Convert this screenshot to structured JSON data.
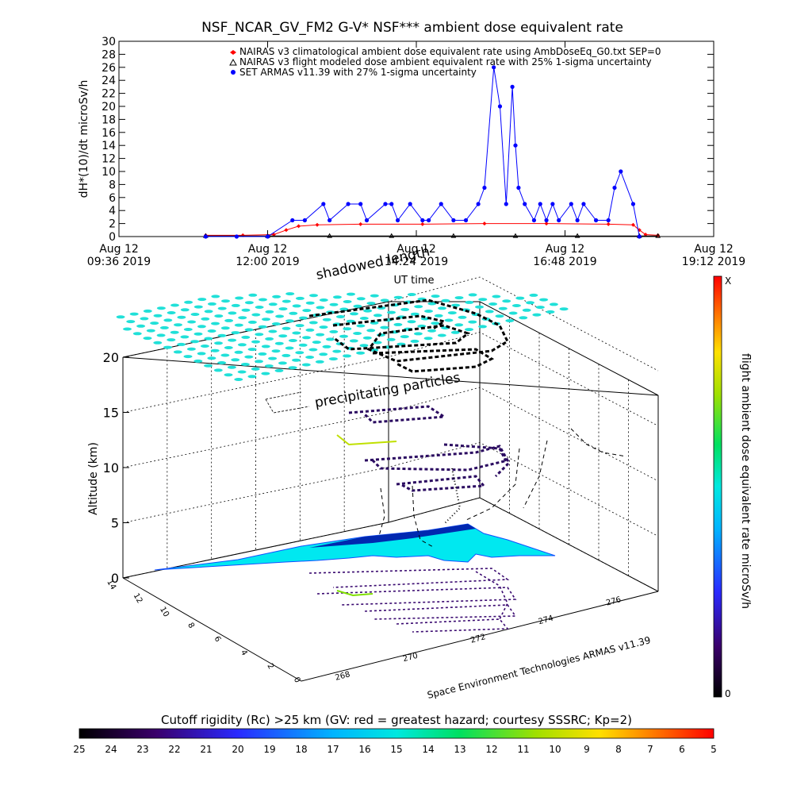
{
  "chart_data": [
    {
      "type": "line",
      "title": "NSF_NCAR_GV_FM2 G-V* NSF*** ambient dose equivalent rate",
      "ylabel": "dH*(10)/dt microSv/h",
      "xlabel": "UT time",
      "ylim": [
        0,
        30
      ],
      "yticks": [
        0,
        2,
        4,
        6,
        8,
        10,
        12,
        14,
        16,
        18,
        20,
        22,
        24,
        26,
        28,
        30
      ],
      "xlim_hours": [
        9.6,
        19.2
      ],
      "xticks": [
        {
          "h": 9.6,
          "l1": "Aug 12",
          "l2": "09:36 2019"
        },
        {
          "h": 12.0,
          "l1": "Aug 12",
          "l2": "12:00 2019"
        },
        {
          "h": 14.4,
          "l1": "Aug 12",
          "l2": "14:24 2019"
        },
        {
          "h": 16.8,
          "l1": "Aug 12",
          "l2": "16:48 2019"
        },
        {
          "h": 19.2,
          "l1": "Aug 12",
          "l2": "19:12 2019"
        }
      ],
      "series": [
        {
          "name": "NAIRAS v3 climatological ambient dose equivalent rate using AmbDoseEq_G0.txt SEP=0",
          "color": "#ff0000",
          "marker": "diamond",
          "x": [
            11.0,
            11.6,
            12.1,
            12.3,
            12.5,
            12.8,
            13.5,
            14.5,
            15.5,
            16.5,
            17.5,
            17.9,
            18.0,
            18.1,
            18.3
          ],
          "y": [
            0.2,
            0.2,
            0.3,
            1.0,
            1.6,
            1.8,
            1.9,
            1.9,
            2.0,
            2.0,
            1.9,
            1.8,
            1.0,
            0.3,
            0.2
          ]
        },
        {
          "name": "NAIRAS v3 flight modeled dose ambient equivalent rate with 25% 1-sigma uncertainty",
          "color": "#000000",
          "marker": "triangle",
          "x": [
            11.0,
            12.0,
            13.0,
            14.0,
            15.0,
            16.0,
            17.0,
            18.0,
            18.3
          ],
          "y": [
            0.1,
            0.1,
            0.1,
            0.1,
            0.1,
            0.1,
            0.1,
            0.1,
            0.1
          ]
        },
        {
          "name": "SET ARMAS v11.39 with 27% 1-sigma uncertainty",
          "color": "#0000ff",
          "marker": "circle",
          "x": [
            11.0,
            11.5,
            12.0,
            12.4,
            12.6,
            12.9,
            13.0,
            13.3,
            13.5,
            13.6,
            13.9,
            14.0,
            14.1,
            14.3,
            14.5,
            14.6,
            14.8,
            15.0,
            15.2,
            15.4,
            15.5,
            15.65,
            15.75,
            15.85,
            15.95,
            16.0,
            16.05,
            16.15,
            16.3,
            16.4,
            16.5,
            16.6,
            16.7,
            16.9,
            17.0,
            17.1,
            17.3,
            17.5,
            17.6,
            17.7,
            17.9,
            18.0
          ],
          "y": [
            0.0,
            0.0,
            0.0,
            2.5,
            2.5,
            5.0,
            2.5,
            5.0,
            5.0,
            2.5,
            5.0,
            5.0,
            2.5,
            5.0,
            2.5,
            2.5,
            5.0,
            2.5,
            2.5,
            5.0,
            7.5,
            26.0,
            20.0,
            5.0,
            23.0,
            14.0,
            7.5,
            5.0,
            2.5,
            5.0,
            2.5,
            5.0,
            2.5,
            5.0,
            2.5,
            5.0,
            2.5,
            2.5,
            7.5,
            10.0,
            5.0,
            0.0
          ]
        }
      ]
    },
    {
      "type": "scatter",
      "chart_form": "3d-perspective",
      "title": "",
      "zlabel": "Altitude (km)",
      "zticks": [
        0,
        5,
        10,
        15,
        20
      ],
      "xticks": [
        268,
        270,
        272,
        274,
        276
      ],
      "yticks": [
        0,
        2,
        4,
        6,
        8,
        10,
        12,
        14
      ],
      "annotations": [
        "shadowed length",
        "precipitating particles"
      ],
      "credit": "Space Environment Technologies ARMAS v11.39",
      "right_colorbar": {
        "label": "flight ambient dose equivalent rate microSv/h",
        "top_label": "X",
        "bottom_label": "0"
      }
    },
    {
      "type": "heatmap",
      "chart_form": "colorbar",
      "title": "Cutoff rigidity (Rc) >25 km (GV: red = greatest hazard; courtesy SSSRC; Kp=2)",
      "ticks": [
        25,
        24,
        23,
        22,
        21,
        20,
        19,
        18,
        17,
        16,
        15,
        14,
        13,
        12,
        11,
        10,
        9,
        8,
        7,
        6,
        5
      ]
    }
  ]
}
